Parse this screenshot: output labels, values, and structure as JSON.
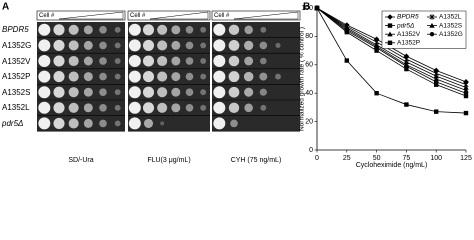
{
  "panel_a": {
    "label": "A",
    "column_header": "Cell #",
    "rows": [
      "BPDR5",
      "A1352G",
      "A1352V",
      "A1352P",
      "A1352S",
      "A1352L",
      "pdr5Δ"
    ],
    "conditions": [
      "SD/-Ura",
      "FLU(3 μg/mL)",
      "CYH (75 ng/mL)"
    ]
  },
  "chart_data": {
    "type": "line",
    "label": "B",
    "x_label": "Cycloheximide (ng/mL)",
    "y_label": "Normalized growth rate ( % control )",
    "x": [
      0,
      25,
      50,
      75,
      100,
      125
    ],
    "xlim": [
      0,
      125
    ],
    "xticks": [
      0,
      25,
      50,
      75,
      100,
      125
    ],
    "ylim": [
      0,
      100
    ],
    "yticks": [
      0,
      20,
      40,
      60,
      80,
      100
    ],
    "series": [
      {
        "name": "BPDR5",
        "italic": true,
        "marker": "diamond",
        "color": "#000000",
        "values": [
          100,
          88,
          78,
          66,
          56,
          48
        ]
      },
      {
        "name": "A1352L",
        "marker": "star",
        "color": "#000000",
        "values": [
          100,
          87,
          76,
          64,
          54,
          46
        ]
      },
      {
        "name": "pdr5Δ",
        "italic": true,
        "marker": "square",
        "color": "#000000",
        "values": [
          100,
          63,
          40,
          32,
          27,
          26
        ]
      },
      {
        "name": "A1352S",
        "marker": "triangle",
        "color": "#000000",
        "values": [
          100,
          86,
          74,
          62,
          52,
          44
        ]
      },
      {
        "name": "A1352V",
        "marker": "triangle",
        "color": "#000000",
        "values": [
          100,
          85,
          73,
          60,
          50,
          42
        ]
      },
      {
        "name": "A1352G",
        "marker": "circle",
        "color": "#000000",
        "values": [
          100,
          84,
          72,
          59,
          48,
          40
        ]
      },
      {
        "name": "A1352P",
        "marker": "square",
        "color": "#000000",
        "values": [
          100,
          83,
          70,
          57,
          46,
          38
        ]
      }
    ]
  }
}
